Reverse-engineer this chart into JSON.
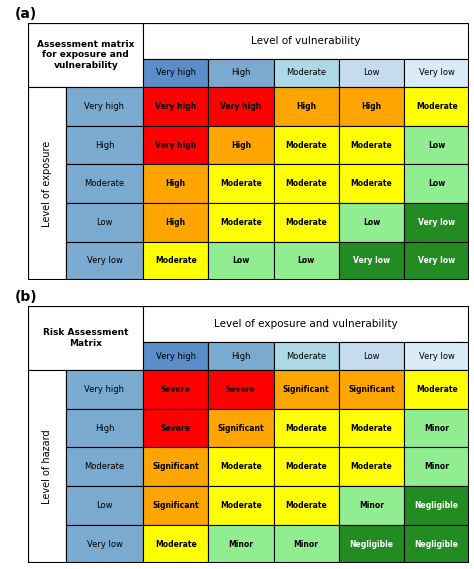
{
  "fig_width": 4.74,
  "fig_height": 5.69,
  "dpi": 100,
  "matrix_a": {
    "title_top_left": "Assessment matrix\nfor exposure and\nvulnerability",
    "col_header": "Level of vulnerability",
    "row_header": "Level of exposure",
    "col_labels": [
      "Very high",
      "High",
      "Moderate",
      "Low",
      "Very low"
    ],
    "row_labels": [
      "Very high",
      "High",
      "Moderate",
      "Low",
      "Very low"
    ],
    "col_label_colors": [
      "#5B8DC8",
      "#7AAAD0",
      "#ADD8E6",
      "#C5DCF0",
      "#D9EBF7"
    ],
    "row_label_colors": [
      "#7AAAD0",
      "#7AAAD0",
      "#7AAAD0",
      "#7AAAD0",
      "#7AAAD0"
    ],
    "cells": [
      [
        [
          "Very high",
          "#FF0000"
        ],
        [
          "Very high",
          "#FF0000"
        ],
        [
          "High",
          "#FFA500"
        ],
        [
          "High",
          "#FFA500"
        ],
        [
          "Moderate",
          "#FFFF00"
        ]
      ],
      [
        [
          "Very high",
          "#FF0000"
        ],
        [
          "High",
          "#FFA500"
        ],
        [
          "Moderate",
          "#FFFF00"
        ],
        [
          "Moderate",
          "#FFFF00"
        ],
        [
          "Low",
          "#90EE90"
        ]
      ],
      [
        [
          "High",
          "#FFA500"
        ],
        [
          "Moderate",
          "#FFFF00"
        ],
        [
          "Moderate",
          "#FFFF00"
        ],
        [
          "Moderate",
          "#FFFF00"
        ],
        [
          "Low",
          "#90EE90"
        ]
      ],
      [
        [
          "High",
          "#FFA500"
        ],
        [
          "Moderate",
          "#FFFF00"
        ],
        [
          "Moderate",
          "#FFFF00"
        ],
        [
          "Low",
          "#90EE90"
        ],
        [
          "Very low",
          "#228B22"
        ]
      ],
      [
        [
          "Moderate",
          "#FFFF00"
        ],
        [
          "Low",
          "#90EE90"
        ],
        [
          "Low",
          "#90EE90"
        ],
        [
          "Very low",
          "#228B22"
        ],
        [
          "Very low",
          "#228B22"
        ]
      ]
    ]
  },
  "matrix_b": {
    "title_top_left": "Risk Assessment\nMatrix",
    "col_header": "Level of exposure and vulnerability",
    "row_header": "Level of hazard",
    "col_labels": [
      "Very high",
      "High",
      "Moderate",
      "Low",
      "Very low"
    ],
    "row_labels": [
      "Very high",
      "High",
      "Moderate",
      "Low",
      "Very low"
    ],
    "col_label_colors": [
      "#5B8DC8",
      "#7AAAD0",
      "#ADD8E6",
      "#C5DCF0",
      "#D9EBF7"
    ],
    "row_label_colors": [
      "#7AAAD0",
      "#7AAAD0",
      "#7AAAD0",
      "#7AAAD0",
      "#7AAAD0"
    ],
    "cells": [
      [
        [
          "Severe",
          "#FF0000"
        ],
        [
          "Severe",
          "#FF0000"
        ],
        [
          "Significant",
          "#FFA500"
        ],
        [
          "Significant",
          "#FFA500"
        ],
        [
          "Moderate",
          "#FFFF00"
        ]
      ],
      [
        [
          "Severe",
          "#FF0000"
        ],
        [
          "Significant",
          "#FFA500"
        ],
        [
          "Moderate",
          "#FFFF00"
        ],
        [
          "Moderate",
          "#FFFF00"
        ],
        [
          "Minor",
          "#90EE90"
        ]
      ],
      [
        [
          "Significant",
          "#FFA500"
        ],
        [
          "Moderate",
          "#FFFF00"
        ],
        [
          "Moderate",
          "#FFFF00"
        ],
        [
          "Moderate",
          "#FFFF00"
        ],
        [
          "Minor",
          "#90EE90"
        ]
      ],
      [
        [
          "Significant",
          "#FFA500"
        ],
        [
          "Moderate",
          "#FFFF00"
        ],
        [
          "Moderate",
          "#FFFF00"
        ],
        [
          "Minor",
          "#90EE90"
        ],
        [
          "Negligible",
          "#228B22"
        ]
      ],
      [
        [
          "Moderate",
          "#FFFF00"
        ],
        [
          "Minor",
          "#90EE90"
        ],
        [
          "Minor",
          "#90EE90"
        ],
        [
          "Negligible",
          "#228B22"
        ],
        [
          "Negligible",
          "#228B22"
        ]
      ]
    ]
  }
}
